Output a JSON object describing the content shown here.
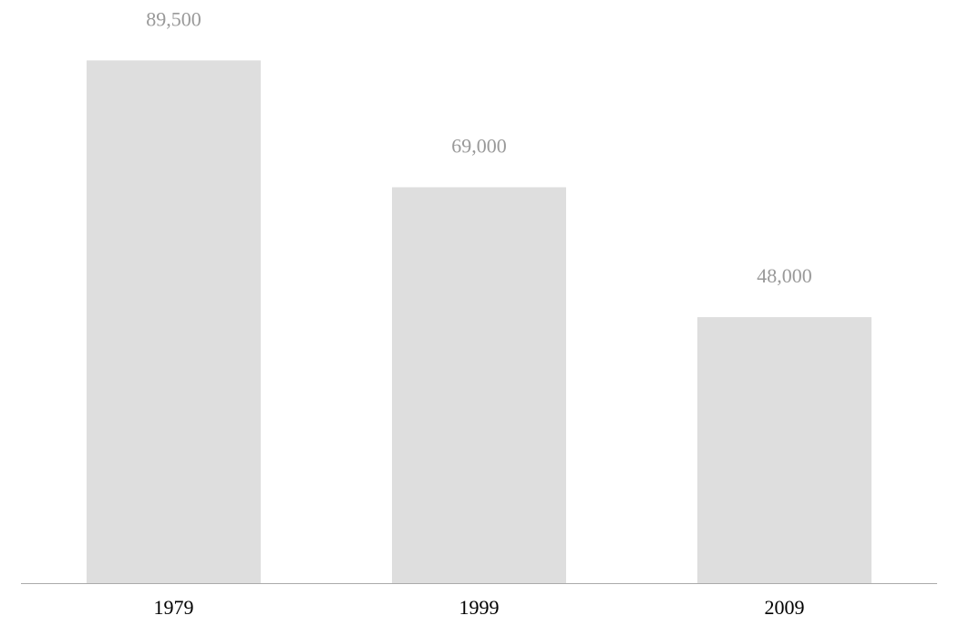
{
  "chart_data": {
    "type": "bar",
    "categories": [
      "1979",
      "1999",
      "2009"
    ],
    "values": [
      89500,
      69000,
      48000
    ],
    "value_labels": [
      "89,500",
      "69,000",
      "48,000"
    ],
    "color": "#dedede",
    "ylim": [
      5000,
      95000
    ]
  }
}
